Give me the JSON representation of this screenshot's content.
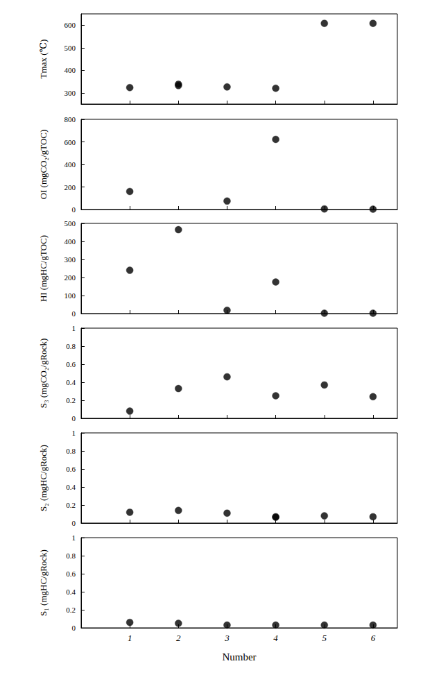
{
  "chart_data": [
    {
      "type": "scatter",
      "y_label": "Tmax (℃)",
      "x": [
        1,
        2,
        2,
        3,
        4,
        5,
        6
      ],
      "values": [
        323,
        332,
        338,
        326,
        320,
        608,
        608
      ],
      "xlim": [
        0,
        6.5
      ],
      "xticks": [
        1,
        2,
        3,
        4,
        5,
        6
      ],
      "ylim": [
        250,
        650
      ],
      "yticks": [
        300,
        400,
        500,
        600
      ],
      "color": "#000000",
      "marker": "circle",
      "grid": false,
      "tick_labels": "y"
    },
    {
      "type": "scatter",
      "y_label": "OI (mgCO₂/gTOC)",
      "x": [
        1,
        3,
        4,
        5,
        6
      ],
      "values": [
        160,
        75,
        622,
        5,
        3
      ],
      "xlim": [
        0,
        6.5
      ],
      "xticks": [
        1,
        2,
        3,
        4,
        5,
        6
      ],
      "ylim": [
        0,
        800
      ],
      "yticks": [
        0,
        200,
        400,
        600,
        800
      ],
      "color": "#000000",
      "marker": "circle",
      "grid": false,
      "tick_labels": "y"
    },
    {
      "type": "scatter",
      "y_label": "HI (mgHC/gTOC)",
      "x": [
        1,
        2,
        3,
        4,
        5,
        6
      ],
      "values": [
        240,
        465,
        18,
        175,
        2,
        2
      ],
      "xlim": [
        0,
        6.5
      ],
      "xticks": [
        1,
        2,
        3,
        4,
        5,
        6
      ],
      "ylim": [
        0,
        500
      ],
      "yticks": [
        0,
        100,
        200,
        300,
        400,
        500
      ],
      "color": "#000000",
      "marker": "circle",
      "grid": false,
      "tick_labels": "y"
    },
    {
      "type": "scatter",
      "y_label": "S₃ (mgCO₂/gRock)",
      "x": [
        1,
        2,
        3,
        4,
        5,
        6
      ],
      "values": [
        0.08,
        0.33,
        0.46,
        0.25,
        0.37,
        0.24
      ],
      "xlim": [
        0,
        6.5
      ],
      "xticks": [
        1,
        2,
        3,
        4,
        5,
        6
      ],
      "ylim": [
        0,
        1
      ],
      "yticks": [
        0,
        0.2,
        0.4,
        0.6,
        0.8,
        1
      ],
      "color": "#000000",
      "marker": "circle",
      "grid": false,
      "tick_labels": "y"
    },
    {
      "type": "scatter",
      "y_label": "S₂ (mgHC/gRock)",
      "x": [
        1,
        2,
        3,
        4,
        4,
        5,
        6
      ],
      "values": [
        0.12,
        0.14,
        0.11,
        0.07,
        0.065,
        0.08,
        0.07
      ],
      "xlim": [
        0,
        6.5
      ],
      "xticks": [
        1,
        2,
        3,
        4,
        5,
        6
      ],
      "ylim": [
        0,
        1
      ],
      "yticks": [
        0,
        0.2,
        0.4,
        0.6,
        0.8,
        1
      ],
      "color": "#000000",
      "marker": "circle",
      "grid": false,
      "tick_labels": "y"
    },
    {
      "type": "scatter",
      "y_label": "S₁ (mgHC/gRock)",
      "x_label": "Number",
      "x": [
        1,
        2,
        3,
        4,
        5,
        6
      ],
      "values": [
        0.06,
        0.05,
        0.03,
        0.03,
        0.03,
        0.03
      ],
      "xlim": [
        0,
        6.5
      ],
      "xticks": [
        1,
        2,
        3,
        4,
        5,
        6
      ],
      "ylim": [
        0,
        1
      ],
      "yticks": [
        0,
        0.2,
        0.4,
        0.6,
        0.8,
        1
      ],
      "color": "#000000",
      "marker": "circle",
      "grid": false,
      "tick_labels": true
    }
  ]
}
